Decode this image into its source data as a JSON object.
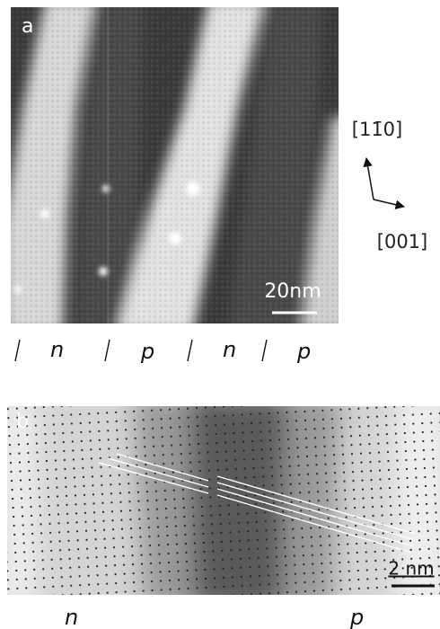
{
  "panel_a": {
    "label": "a",
    "scale_bar": "20nm"
  },
  "directions": {
    "vertical": "[11̄0]",
    "horizontal": "[001]"
  },
  "domain_labels": [
    "n",
    "p",
    "n",
    "p"
  ],
  "panel_b": {
    "label": "b",
    "scale_bar": "2 nm",
    "side_labels": [
      "n",
      "p"
    ]
  }
}
